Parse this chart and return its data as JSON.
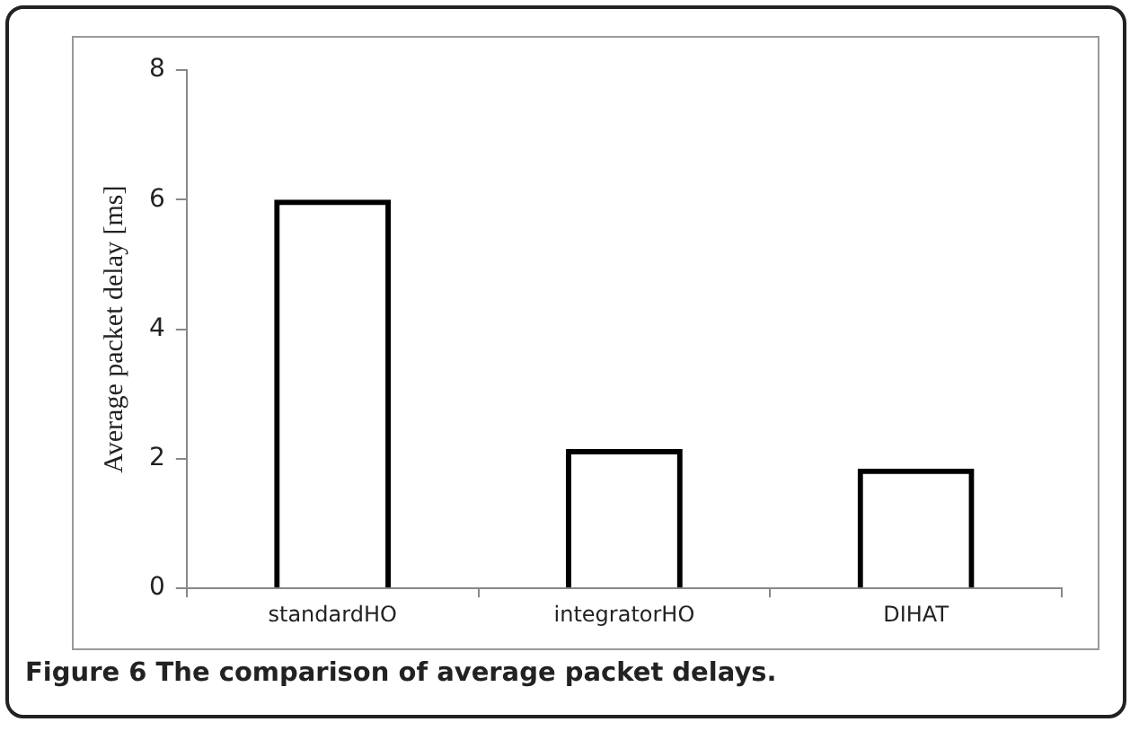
{
  "chart_data": {
    "type": "bar",
    "title": "Figure 6 The comparison of average packet delays.",
    "ylabel": "Average packet delay [ms]",
    "categories": [
      "standardHO",
      "integratorHO",
      "DIHAT"
    ],
    "values": [
      6.0,
      2.15,
      1.85
    ],
    "color": "#000000",
    "ylim": [
      0,
      8
    ],
    "yticks": [
      0,
      2,
      4,
      6,
      8
    ],
    "grid": false,
    "legend": false
  }
}
